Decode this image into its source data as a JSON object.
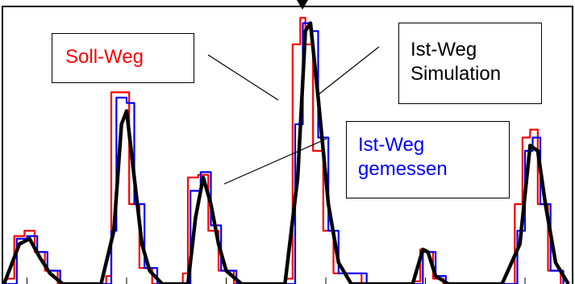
{
  "colors": {
    "soll": "#ff0000",
    "ist_gemessen": "#0000ff",
    "ist_simulation": "#000000",
    "frame": "#000000",
    "background": "#ffffff"
  },
  "chart_data": {
    "type": "line",
    "title": "",
    "xlabel": "",
    "ylabel": "",
    "grid": false,
    "legend": "callout boxes with leader lines",
    "series": [
      {
        "name": "Soll-Weg",
        "color": "#ff0000",
        "style": "step",
        "points": [
          [
            0,
            0.02
          ],
          [
            4,
            0.18
          ],
          [
            8,
            0.2
          ],
          [
            12,
            0.12
          ],
          [
            16,
            0.05
          ],
          [
            21,
            0.0
          ],
          [
            35,
            0.0
          ],
          [
            40,
            0.03
          ],
          [
            42,
            0.72
          ],
          [
            46,
            0.72
          ],
          [
            49,
            0.3
          ],
          [
            53,
            0.06
          ],
          [
            58,
            0.0
          ],
          [
            70,
            0.04
          ],
          [
            72,
            0.4
          ],
          [
            76,
            0.41
          ],
          [
            80,
            0.2
          ],
          [
            84,
            0.05
          ],
          [
            90,
            0.0
          ],
          [
            110,
            0.02
          ],
          [
            113,
            0.9
          ],
          [
            116,
            1.0
          ],
          [
            118,
            0.9
          ],
          [
            121,
            0.5
          ],
          [
            125,
            0.2
          ],
          [
            129,
            0.04
          ],
          [
            140,
            0.0
          ],
          [
            160,
            0.01
          ],
          [
            163,
            0.13
          ],
          [
            165,
            0.12
          ],
          [
            168,
            0.02
          ],
          [
            172,
            0.0
          ],
          [
            195,
            0.0
          ],
          [
            200,
            0.3
          ],
          [
            203,
            0.55
          ],
          [
            206,
            0.58
          ],
          [
            209,
            0.3
          ],
          [
            213,
            0.05
          ],
          [
            218,
            0.0
          ]
        ]
      },
      {
        "name": "Ist-Weg gemessen",
        "color": "#0000ff",
        "style": "step",
        "points": [
          [
            0,
            0.0
          ],
          [
            5,
            0.17
          ],
          [
            9,
            0.18
          ],
          [
            13,
            0.12
          ],
          [
            17,
            0.05
          ],
          [
            22,
            0.0
          ],
          [
            36,
            0.0
          ],
          [
            42,
            0.2
          ],
          [
            44,
            0.7
          ],
          [
            48,
            0.68
          ],
          [
            51,
            0.3
          ],
          [
            55,
            0.06
          ],
          [
            60,
            0.0
          ],
          [
            70,
            0.0
          ],
          [
            73,
            0.35
          ],
          [
            77,
            0.42
          ],
          [
            81,
            0.22
          ],
          [
            85,
            0.05
          ],
          [
            91,
            0.0
          ],
          [
            110,
            0.0
          ],
          [
            114,
            0.6
          ],
          [
            117,
            0.98
          ],
          [
            120,
            0.95
          ],
          [
            123,
            0.55
          ],
          [
            127,
            0.2
          ],
          [
            131,
            0.04
          ],
          [
            142,
            0.0
          ],
          [
            160,
            0.0
          ],
          [
            164,
            0.12
          ],
          [
            166,
            0.12
          ],
          [
            169,
            0.03
          ],
          [
            173,
            0.0
          ],
          [
            195,
            0.0
          ],
          [
            201,
            0.2
          ],
          [
            204,
            0.5
          ],
          [
            207,
            0.55
          ],
          [
            210,
            0.3
          ],
          [
            214,
            0.05
          ],
          [
            219,
            0.0
          ]
        ]
      },
      {
        "name": "Ist-Weg Simulation",
        "color": "#000000",
        "style": "smooth",
        "points": [
          [
            0,
            0.0
          ],
          [
            6,
            0.15
          ],
          [
            10,
            0.17
          ],
          [
            14,
            0.1
          ],
          [
            18,
            0.04
          ],
          [
            23,
            0.0
          ],
          [
            38,
            0.0
          ],
          [
            43,
            0.2
          ],
          [
            46,
            0.6
          ],
          [
            48,
            0.65
          ],
          [
            51,
            0.4
          ],
          [
            54,
            0.15
          ],
          [
            57,
            0.05
          ],
          [
            62,
            0.0
          ],
          [
            72,
            0.0
          ],
          [
            75,
            0.25
          ],
          [
            78,
            0.4
          ],
          [
            81,
            0.3
          ],
          [
            84,
            0.15
          ],
          [
            87,
            0.05
          ],
          [
            93,
            0.0
          ],
          [
            110,
            0.0
          ],
          [
            115,
            0.4
          ],
          [
            118,
            0.95
          ],
          [
            120,
            0.98
          ],
          [
            123,
            0.7
          ],
          [
            127,
            0.3
          ],
          [
            131,
            0.08
          ],
          [
            136,
            0.0
          ],
          [
            160,
            0.0
          ],
          [
            164,
            0.13
          ],
          [
            166,
            0.12
          ],
          [
            169,
            0.03
          ],
          [
            174,
            0.0
          ],
          [
            195,
            0.0
          ],
          [
            202,
            0.15
          ],
          [
            206,
            0.52
          ],
          [
            209,
            0.5
          ],
          [
            212,
            0.3
          ],
          [
            216,
            0.08
          ],
          [
            221,
            0.0
          ]
        ]
      }
    ]
  },
  "callouts": {
    "soll": {
      "text": "Soll-Weg",
      "color": "#ff0000"
    },
    "simulation": {
      "line1": "Ist-Weg",
      "line2": "Simulation",
      "color": "#000000"
    },
    "gemessen": {
      "line1": "Ist-Weg",
      "line2": "gemessen",
      "color": "#0000ff"
    }
  }
}
